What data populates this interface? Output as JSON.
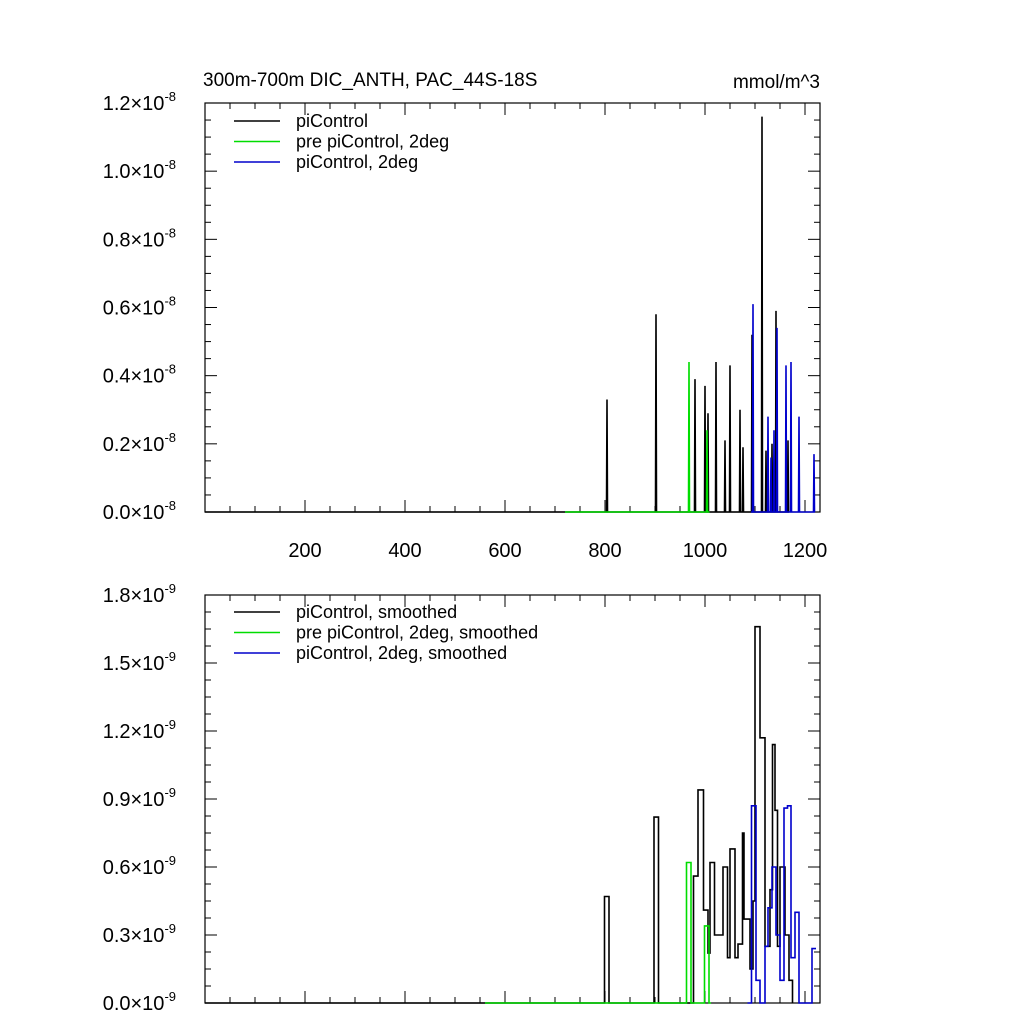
{
  "title": "300m-700m DIC_ANTH, PAC_44S-18S",
  "units": "mmol/m^3",
  "chart_data": [
    {
      "type": "line",
      "xlim": [
        0,
        1230
      ],
      "ylim": [
        0,
        1.2
      ],
      "y_exponent": "-8",
      "x_ticks": [
        "200",
        "400",
        "600",
        "800",
        "1000",
        "1200"
      ],
      "x_tick_values": [
        200,
        400,
        600,
        800,
        1000,
        1200
      ],
      "y_ticks": [
        "0.0",
        "0.2",
        "0.4",
        "0.6",
        "0.8",
        "1.0",
        "1.2"
      ],
      "y_tick_values": [
        0,
        0.2,
        0.4,
        0.6,
        0.8,
        1.0,
        1.2
      ],
      "legend": [
        "piControl",
        "pre piControl, 2deg",
        "piControl, 2deg"
      ],
      "series": [
        {
          "name": "piControl",
          "color": "#000000",
          "x": [
            0,
            802,
            803,
            804,
            805,
            806,
            900,
            901,
            902,
            903,
            904,
            978,
            979,
            980,
            981,
            982,
            998,
            999,
            1000,
            1001,
            1002,
            1004,
            1005,
            1006,
            1007,
            1008,
            1020,
            1021,
            1022,
            1023,
            1024,
            1038,
            1039,
            1040,
            1041,
            1042,
            1048,
            1049,
            1050,
            1051,
            1052,
            1068,
            1069,
            1070,
            1071,
            1072,
            1074,
            1075,
            1076,
            1077,
            1078,
            1092,
            1093,
            1094,
            1095,
            1096,
            1112,
            1113,
            1114,
            1115,
            1116,
            1120,
            1121,
            1122,
            1123,
            1124,
            1132,
            1133,
            1134,
            1135,
            1136,
            1140,
            1141,
            1142,
            1143,
            1144,
            1164,
            1165,
            1166,
            1167,
            1168
          ],
          "y": [
            0,
            0,
            0,
            0.33,
            0,
            0,
            0,
            0,
            0.58,
            0,
            0,
            0,
            0,
            0.39,
            0,
            0,
            0,
            0,
            0.37,
            0,
            0,
            0,
            0,
            0.29,
            0,
            0,
            0,
            0,
            0.44,
            0,
            0,
            0,
            0,
            0.21,
            0,
            0,
            0,
            0,
            0.43,
            0,
            0,
            0,
            0,
            0.3,
            0,
            0,
            0,
            0,
            0.19,
            0,
            0,
            0,
            0,
            0.52,
            0,
            0,
            0,
            0,
            1.16,
            0,
            0,
            0,
            0,
            0.18,
            0,
            0,
            0,
            0,
            0.2,
            0,
            0,
            0,
            0,
            0.59,
            0,
            0,
            0,
            0,
            0.21,
            0,
            0
          ]
        },
        {
          "name": "pre piControl, 2deg",
          "color": "#00dd00",
          "x": [
            720,
            966,
            967,
            968,
            969,
            970,
            1002,
            1003,
            1004,
            1005,
            1006,
            1009
          ],
          "y": [
            0,
            0,
            0,
            0.44,
            0,
            0,
            0,
            0,
            0.24,
            0,
            0,
            0
          ],
          "end_x": 1009
        },
        {
          "name": "piControl, 2deg",
          "color": "#0000cc",
          "x": [
            1092,
            1094,
            1095,
            1096,
            1097,
            1098,
            1124,
            1125,
            1126,
            1127,
            1128,
            1130,
            1131,
            1132,
            1133,
            1134,
            1136,
            1137,
            1138,
            1139,
            1140,
            1142,
            1143,
            1144,
            1145,
            1146,
            1160,
            1161,
            1162,
            1163,
            1164,
            1170,
            1171,
            1172,
            1173,
            1174,
            1186,
            1187,
            1188,
            1189,
            1190,
            1216,
            1217,
            1218,
            1219,
            1220
          ],
          "y": [
            0,
            0,
            0,
            0.61,
            0,
            0,
            0,
            0,
            0.28,
            0,
            0,
            0,
            0,
            0.16,
            0,
            0,
            0,
            0,
            0.24,
            0,
            0,
            0,
            0,
            0.54,
            0,
            0,
            0,
            0,
            0.43,
            0,
            0,
            0,
            0,
            0.44,
            0,
            0,
            0,
            0,
            0.28,
            0,
            0,
            0,
            0,
            0.17,
            0,
            0
          ]
        }
      ]
    },
    {
      "type": "line",
      "xlim": [
        0,
        1230
      ],
      "ylim": [
        0,
        1.8
      ],
      "y_exponent": "-9",
      "x_ticks": [],
      "x_tick_values": [
        200,
        400,
        600,
        800,
        1000,
        1200
      ],
      "y_ticks": [
        "0.0",
        "0.3",
        "0.6",
        "0.9",
        "1.2",
        "1.5",
        "1.8"
      ],
      "y_tick_values": [
        0,
        0.3,
        0.6,
        0.9,
        1.2,
        1.5,
        1.8
      ],
      "legend": [
        "piControl, smoothed",
        "pre piControl, 2deg, smoothed",
        "piControl, 2deg, smoothed"
      ],
      "series": [
        {
          "name": "piControl, smoothed",
          "color": "#000000",
          "x": [
            0,
            799,
            799,
            808,
            808,
            898,
            898,
            907,
            907,
            977,
            977,
            986,
            986,
            997,
            997,
            1006,
            1006,
            1010,
            1010,
            1019,
            1019,
            1036,
            1036,
            1045,
            1045,
            1050,
            1050,
            1060,
            1060,
            1066,
            1066,
            1075,
            1075,
            1078,
            1078,
            1090,
            1090,
            1096,
            1096,
            1100,
            1100,
            1110,
            1110,
            1120,
            1120,
            1130,
            1130,
            1135,
            1135,
            1140,
            1140,
            1145,
            1145,
            1150,
            1150,
            1160,
            1160,
            1168,
            1168,
            1175,
            1175
          ],
          "y": [
            0,
            0,
            0.47,
            0.47,
            0,
            0,
            0.82,
            0.82,
            0,
            0,
            0.56,
            0.56,
            0.94,
            0.94,
            0.41,
            0.41,
            0.22,
            0.22,
            0.62,
            0.62,
            0.3,
            0.3,
            0.6,
            0.6,
            0.2,
            0.2,
            0.68,
            0.68,
            0.2,
            0.2,
            0.26,
            0.26,
            0.75,
            0.75,
            0.37,
            0.37,
            0.15,
            0.15,
            0.45,
            0.45,
            1.66,
            1.66,
            1.17,
            1.17,
            0.25,
            0.25,
            0.5,
            0.5,
            1.14,
            1.14,
            0.85,
            0.85,
            0.25,
            0.25,
            0.6,
            0.6,
            0.3,
            0.3,
            0.1,
            0.1,
            0
          ]
        },
        {
          "name": "pre piControl, 2deg, smoothed",
          "color": "#00dd00",
          "x": [
            560,
            963,
            963,
            972,
            972,
            999,
            999,
            1008,
            1008,
            1012
          ],
          "y": [
            0,
            0,
            0.62,
            0.62,
            0,
            0,
            0.34,
            0.34,
            0,
            0
          ]
        },
        {
          "name": "piControl, 2deg, smoothed",
          "color": "#0000cc",
          "x": [
            1085,
            1093,
            1093,
            1102,
            1102,
            1110,
            1110,
            1120,
            1120,
            1126,
            1126,
            1134,
            1134,
            1142,
            1142,
            1150,
            1150,
            1158,
            1158,
            1165,
            1165,
            1172,
            1172,
            1180,
            1180,
            1188,
            1188,
            1196,
            1196,
            1214,
            1214,
            1222
          ],
          "y": [
            0,
            0,
            0.87,
            0.87,
            0.1,
            0.1,
            0,
            0,
            0.25,
            0.25,
            0.42,
            0.42,
            0.6,
            0.6,
            0.3,
            0.3,
            0.1,
            0.1,
            0.86,
            0.86,
            0.87,
            0.87,
            0.2,
            0.2,
            0.4,
            0.4,
            0,
            0,
            0,
            0,
            0.24,
            0.24
          ]
        }
      ]
    }
  ]
}
